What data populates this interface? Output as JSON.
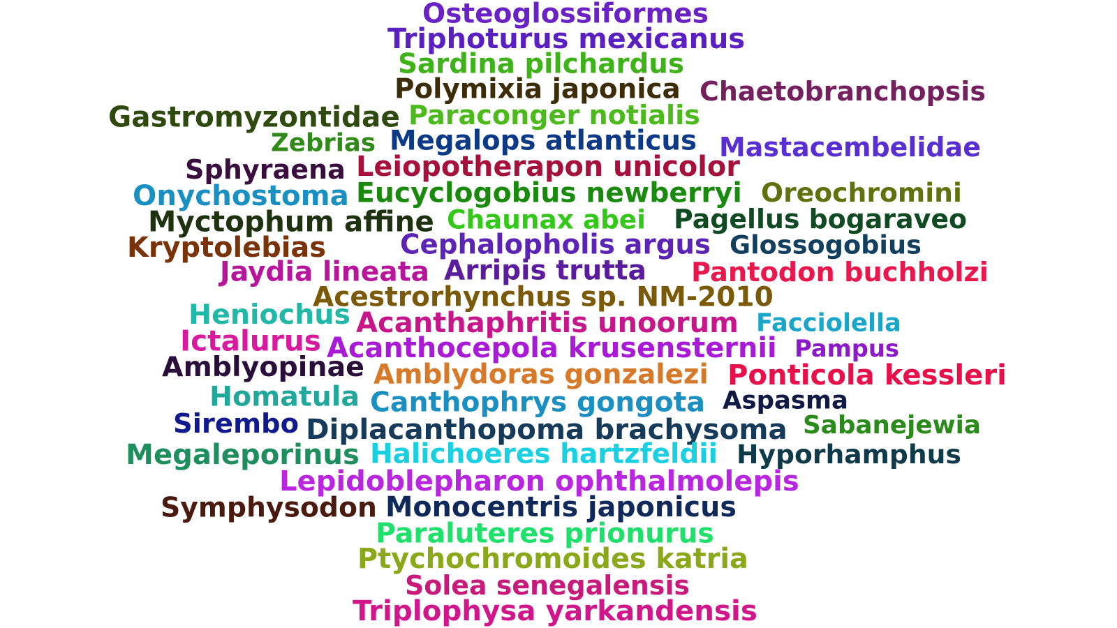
{
  "words": [
    {
      "text": "Osteoglossiformes",
      "color": "#6a22c4"
    },
    {
      "text": "Triphoturus mexicanus",
      "color": "#5a1fc1"
    },
    {
      "text": "Sardina pilchardus",
      "color": "#3fb21a"
    },
    {
      "text": "Polymixia japonica",
      "color": "#3d2c08"
    },
    {
      "text": "Chaetobranchopsis",
      "color": "#74205e"
    },
    {
      "text": "Gastromyzontidae",
      "color": "#2f4a0e"
    },
    {
      "text": "Paraconger notialis",
      "color": "#4cb91c"
    },
    {
      "text": "Zebrias",
      "color": "#2f8a17"
    },
    {
      "text": "Megalops atlanticus",
      "color": "#0d3a86"
    },
    {
      "text": "Mastacembelidae",
      "color": "#5a2fd2"
    },
    {
      "text": "Sphyraena",
      "color": "#3a0e3f"
    },
    {
      "text": "Leiopotherapon unicolor",
      "color": "#a5103c"
    },
    {
      "text": "Onychostoma",
      "color": "#1a8fc2"
    },
    {
      "text": "Eucyclogobius newberryi",
      "color": "#1a8a0f"
    },
    {
      "text": "Oreochromini",
      "color": "#5f720e"
    },
    {
      "text": "Myctophum affine",
      "color": "#1e3210"
    },
    {
      "text": "Chaunax abei",
      "color": "#33c81a"
    },
    {
      "text": "Pagellus bogaraveo",
      "color": "#0f4a22"
    },
    {
      "text": "Kryptolebias",
      "color": "#7a3208"
    },
    {
      "text": "Cephalopholis argus",
      "color": "#5c24b5"
    },
    {
      "text": "Glossogobius",
      "color": "#123f5e"
    },
    {
      "text": "Jaydia lineata",
      "color": "#b8169a"
    },
    {
      "text": "Arripis trutta",
      "color": "#5a1b9c"
    },
    {
      "text": "Pantodon buchholzi",
      "color": "#e8184f"
    },
    {
      "text": "Acestrorhynchus sp. NM-2010",
      "color": "#7a5a08"
    },
    {
      "text": "Heniochus",
      "color": "#22b8a8"
    },
    {
      "text": "Acanthaphritis unoorum",
      "color": "#c6168a"
    },
    {
      "text": "Facciolella",
      "color": "#1aa6c8"
    },
    {
      "text": "Ictalurus",
      "color": "#d81a9e"
    },
    {
      "text": "Acanthocepola krusensternii",
      "color": "#a91ad6"
    },
    {
      "text": "Pampus",
      "color": "#8c1ac8"
    },
    {
      "text": "Amblyopinae",
      "color": "#2a0e3a"
    },
    {
      "text": "Amblydoras gonzalezi",
      "color": "#d67a2a"
    },
    {
      "text": "Ponticola kessleri",
      "color": "#e8104a"
    },
    {
      "text": "Homatula",
      "color": "#22a89a"
    },
    {
      "text": "Canthophrys gongota",
      "color": "#1a8fc2"
    },
    {
      "text": "Aspasma",
      "color": "#101a44"
    },
    {
      "text": "Sirembo",
      "color": "#101a8e"
    },
    {
      "text": "Diplacanthopoma brachysoma",
      "color": "#153a5a"
    },
    {
      "text": "Sabanejewia",
      "color": "#2a8a1a"
    },
    {
      "text": "Megaleporinus",
      "color": "#1e8e5e"
    },
    {
      "text": "Halichoeres hartzfeldii",
      "color": "#1ad0e0"
    },
    {
      "text": "Hyporhamphus",
      "color": "#0f3a4a"
    },
    {
      "text": "Lepidoblepharon ophthalmolepis",
      "color": "#b826e0"
    },
    {
      "text": "Symphysodon",
      "color": "#4a1a0e"
    },
    {
      "text": "Monocentris japonicus",
      "color": "#0f2a5a"
    },
    {
      "text": "Paraluteres prionurus",
      "color": "#1ee06a"
    },
    {
      "text": "Ptychochromoides katria",
      "color": "#8aa81a"
    },
    {
      "text": "Solea senegalensis",
      "color": "#c81a7a"
    },
    {
      "text": "Triplophysa yarkandensis",
      "color": "#d0168a"
    }
  ]
}
